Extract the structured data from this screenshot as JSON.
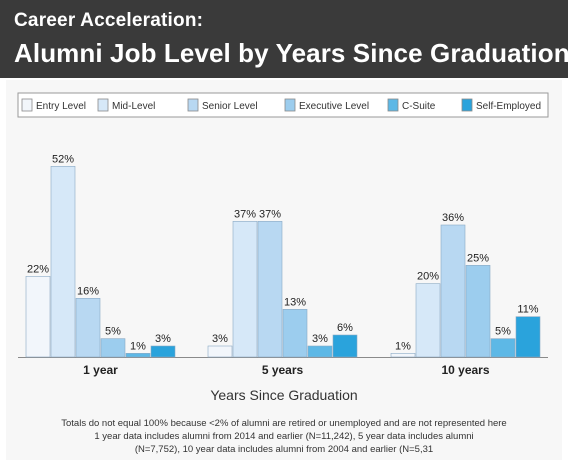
{
  "header": {
    "title_line1": "Career Acceleration:",
    "title_line2": "Alumni Job Level by Years Since Graduation"
  },
  "colors": {
    "header_bg": "#3a3a3a",
    "Entry Level": "#f2f6fb",
    "Mid-Level": "#d6e8f8",
    "Senior  Level": "#b8d8f2",
    "Executive Level": "#9ccdee",
    "C-Suite": "#5db8e6",
    "Self-Employed": "#2aa3dc"
  },
  "chart_data": {
    "type": "bar",
    "title": "Alumni Job Level by Years Since Graduation",
    "xlabel": "Years Since Graduation",
    "ylabel": "",
    "ylim": [
      0,
      60
    ],
    "grid": false,
    "legend": "top",
    "categories": [
      "1 year",
      "5 years",
      "10 years"
    ],
    "series": [
      {
        "name": "Entry Level",
        "values": [
          22,
          3,
          1
        ]
      },
      {
        "name": "Mid-Level",
        "values": [
          52,
          37,
          20
        ]
      },
      {
        "name": "Senior  Level",
        "values": [
          16,
          37,
          36
        ]
      },
      {
        "name": "Executive Level",
        "values": [
          5,
          13,
          25
        ]
      },
      {
        "name": "C-Suite",
        "values": [
          1,
          3,
          5
        ]
      },
      {
        "name": "Self-Employed",
        "values": [
          3,
          6,
          11
        ]
      }
    ]
  },
  "footnotes": {
    "line1": "Totals do not equal 100% because <2% of alumni are retired or unemployed and are not represented here",
    "line2": "1 year data includes alumni from 2014 and earlier (N=11,242), 5 year data includes alumni",
    "line3": "(N=7,752), 10 year data includes alumni from 2004 and earlier (N=5,31"
  }
}
